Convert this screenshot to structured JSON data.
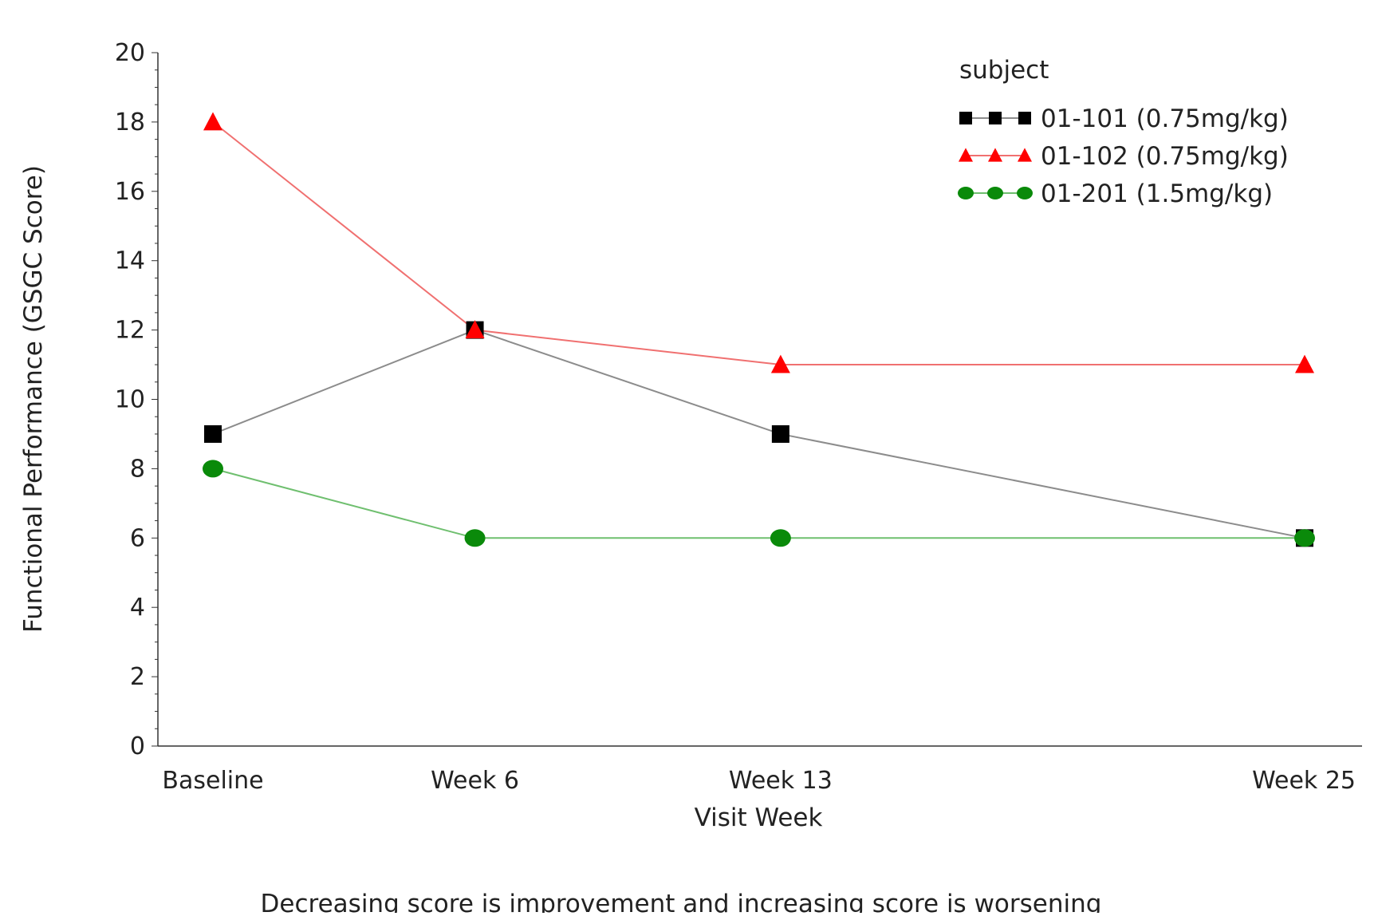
{
  "chart_data": {
    "type": "line",
    "categories": [
      "Baseline",
      "Week 6",
      "Week 13",
      "Week 25"
    ],
    "x_positions": [
      0,
      6,
      13,
      25
    ],
    "xlabel": "Visit Week",
    "ylabel": "Functional Performance (GSGC Score)",
    "ylim": [
      0,
      20
    ],
    "yticks": [
      0,
      2,
      4,
      6,
      8,
      10,
      12,
      14,
      16,
      18,
      20
    ],
    "grid": false,
    "legend": {
      "title": "subject",
      "position": "top-right"
    },
    "series": [
      {
        "name": "01-101 (0.75mg/kg)",
        "marker": "square",
        "line_color": "#8c8c8c",
        "marker_color": "#000000",
        "values": [
          9,
          12,
          9,
          6
        ]
      },
      {
        "name": "01-102 (0.75mg/kg)",
        "marker": "triangle",
        "line_color": "#f07070",
        "marker_color": "#ff0000",
        "values": [
          18,
          12,
          11,
          11
        ]
      },
      {
        "name": "01-201 (1.5mg/kg)",
        "marker": "circle",
        "line_color": "#6fbf6f",
        "marker_color": "#0a8a0a",
        "values": [
          8,
          6,
          6,
          6
        ]
      }
    ]
  },
  "caption": "Decreasing score is improvement and increasing score is worsening"
}
